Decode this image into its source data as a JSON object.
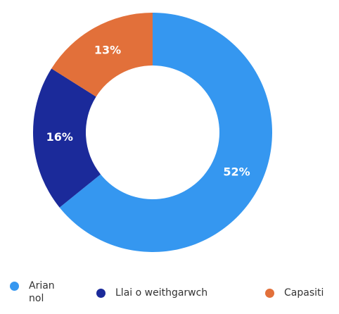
{
  "chart_data": {
    "type": "donut",
    "categories": [
      "Arian nol",
      "Llai o weithgarwch",
      "Capasiti"
    ],
    "values": [
      52,
      16,
      13
    ],
    "value_labels": [
      "52%",
      "16%",
      "13%"
    ],
    "colors": [
      "#3597f0",
      "#1b2a9a",
      "#e2703a"
    ]
  }
}
